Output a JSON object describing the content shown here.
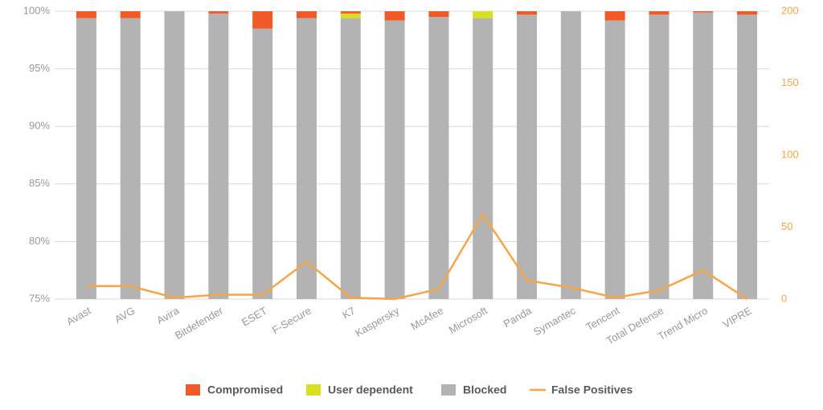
{
  "chart_data": {
    "type": "bar",
    "stacked": true,
    "categories": [
      "Avast",
      "AVG",
      "Avira",
      "Bitdefender",
      "ESET",
      "F-Secure",
      "K7",
      "Kaspersky",
      "McAfee",
      "Microsoft",
      "Panda",
      "Symantec",
      "Tencent",
      "Total Defense",
      "Trend Micro",
      "VIPRE"
    ],
    "series": [
      {
        "name": "Blocked",
        "color": "#b3b3b3",
        "values": [
          99.4,
          99.4,
          100,
          99.8,
          98.5,
          99.4,
          99.4,
          99.2,
          99.5,
          99.4,
          99.7,
          100,
          99.2,
          99.7,
          99.9,
          99.7
        ]
      },
      {
        "name": "User dependent",
        "color": "#d9e021",
        "values": [
          0,
          0,
          0,
          0,
          0,
          0,
          0.4,
          0,
          0,
          0.6,
          0,
          0,
          0,
          0,
          0,
          0
        ]
      },
      {
        "name": "Compromised",
        "color": "#f05a28",
        "values": [
          0.6,
          0.6,
          0,
          0.2,
          1.5,
          0.6,
          0.2,
          0.8,
          0.5,
          0,
          0.3,
          0,
          0.8,
          0.3,
          0.1,
          0.3
        ]
      },
      {
        "name": "False Positives",
        "color": "#f5a54a",
        "type": "line",
        "axis": "y2",
        "values": [
          9,
          9,
          1,
          3,
          3,
          26,
          1,
          0,
          7,
          59,
          13,
          8,
          1,
          6,
          20,
          0
        ]
      }
    ],
    "legend_order": [
      2,
      1,
      0,
      3
    ],
    "ylim": [
      75,
      100
    ],
    "yticks": [
      {
        "value": 75,
        "label": "75%"
      },
      {
        "value": 80,
        "label": "80%"
      },
      {
        "value": 85,
        "label": "85%"
      },
      {
        "value": 90,
        "label": "90%"
      },
      {
        "value": 95,
        "label": "95%"
      },
      {
        "value": 100,
        "label": "100%"
      }
    ],
    "y2lim": [
      0,
      200
    ],
    "y2ticks": [
      0,
      50,
      100,
      150,
      200
    ],
    "grid": true,
    "legend": "bottom"
  }
}
